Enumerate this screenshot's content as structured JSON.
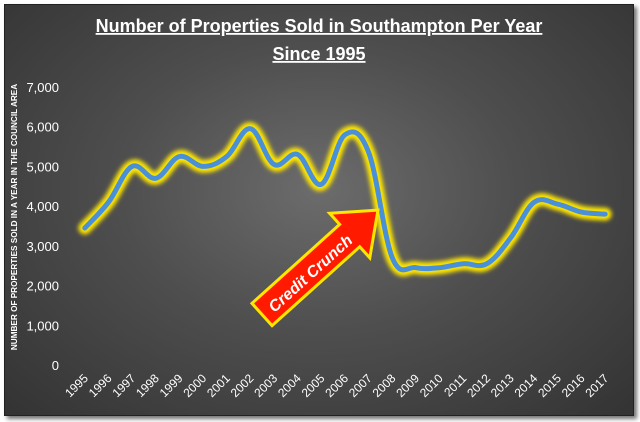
{
  "chart_data": {
    "type": "line",
    "title_line1": "Number of Properties Sold in Southampton Per Year",
    "title_line2": "Since 1995",
    "xlabel": "",
    "ylabel": "NUMBER OF PROPERTIES SOLD IN A YEAR IN THE COUNCIL AREA",
    "ylim": [
      0,
      7000
    ],
    "yticks": [
      "0",
      "1,000",
      "2,000",
      "3,000",
      "4,000",
      "5,000",
      "6,000",
      "7,000"
    ],
    "ytick_values": [
      0,
      1000,
      2000,
      3000,
      4000,
      5000,
      6000,
      7000
    ],
    "categories": [
      "1995",
      "1996",
      "1997",
      "1998",
      "1999",
      "2000",
      "2001",
      "2002",
      "2003",
      "2004",
      "2005",
      "2006",
      "2007",
      "2008",
      "2009",
      "2010",
      "2011",
      "2012",
      "2013",
      "2014",
      "2015",
      "2016",
      "2017"
    ],
    "series": [
      {
        "values": [
          3450,
          4100,
          5000,
          4700,
          5250,
          5000,
          5250,
          5950,
          5050,
          5300,
          4550,
          5800,
          5350,
          2700,
          2450,
          2450,
          2550,
          2550,
          3200,
          4100,
          4050,
          3850,
          3800
        ]
      }
    ],
    "grid": false,
    "line_color": "#4a90d9",
    "glow_color": "#ffe600",
    "annotation": {
      "text": "Credit Crunch",
      "arrow_color": "#ff1a00",
      "arrow_border": "#ffe600"
    }
  }
}
